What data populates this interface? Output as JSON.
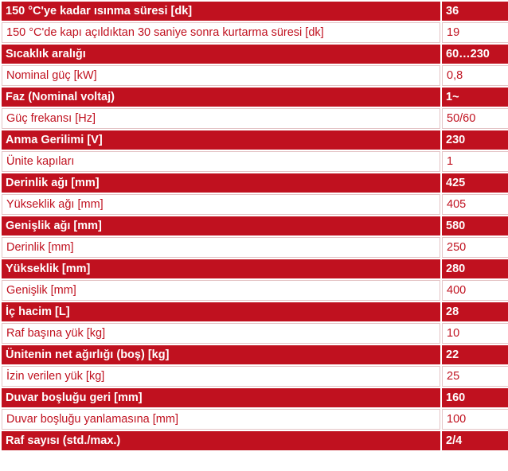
{
  "colors": {
    "accent": "#c0111f",
    "light_row_bg": "#ffffff",
    "dark_row_text": "#ffffff"
  },
  "rows": [
    {
      "label": "150 °C'ye kadar ısınma süresi [dk]",
      "value": "36"
    },
    {
      "label": "150 °C'de kapı açıldıktan 30 saniye sonra kurtarma süresi [dk]",
      "value": "19"
    },
    {
      "label": "Sıcaklık aralığı",
      "value": "60…230"
    },
    {
      "label": "Nominal güç [kW]",
      "value": "0,8"
    },
    {
      "label": "Faz (Nominal voltaj)",
      "value": "1~"
    },
    {
      "label": "Güç frekansı [Hz]",
      "value": "50/60"
    },
    {
      "label": "Anma Gerilimi [V]",
      "value": "230"
    },
    {
      "label": "Ünite kapıları",
      "value": "1"
    },
    {
      "label": "Derinlik ağı [mm]",
      "value": "425"
    },
    {
      "label": "Yükseklik ağı [mm]",
      "value": "405"
    },
    {
      "label": "Genişlik ağı [mm]",
      "value": "580"
    },
    {
      "label": "Derinlik [mm]",
      "value": "250"
    },
    {
      "label": "Yükseklik [mm]",
      "value": "280"
    },
    {
      "label": "Genişlik [mm]",
      "value": "400"
    },
    {
      "label": "İç hacim [L]",
      "value": "28"
    },
    {
      "label": "Raf başına yük [kg]",
      "value": "10"
    },
    {
      "label": "Ünitenin net ağırlığı (boş) [kg]",
      "value": "22"
    },
    {
      "label": "İzin verilen yük [kg]",
      "value": "25"
    },
    {
      "label": "Duvar boşluğu geri [mm]",
      "value": "160"
    },
    {
      "label": "Duvar boşluğu yanlamasına [mm]",
      "value": "100"
    },
    {
      "label": "Raf sayısı (std./max.)",
      "value": "2/4"
    }
  ]
}
